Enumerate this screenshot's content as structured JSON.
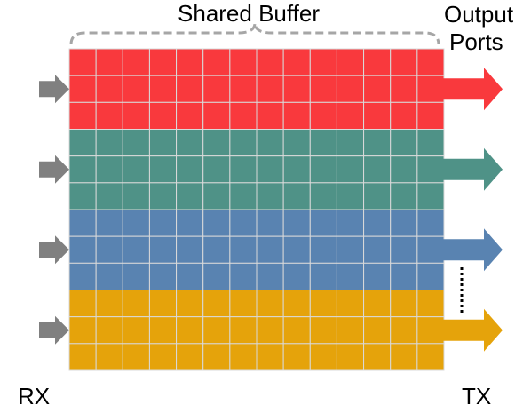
{
  "diagram": {
    "title": "Shared Buffer",
    "output_ports_line1": "Output",
    "output_ports_line2": "Ports",
    "rx_label": "RX",
    "tx_label": "TX",
    "queues": [
      {
        "color": "#f9393d",
        "arrow_color": "#f9393d"
      },
      {
        "color": "#4f9287",
        "arrow_color": "#4f9287"
      },
      {
        "color": "#5983b1",
        "arrow_color": "#5983b1"
      },
      {
        "color": "#e5a30b",
        "arrow_color": "#e5a30b"
      }
    ],
    "input_arrow_color": "#808080",
    "grid_line_color": "#d9d9d9",
    "brace_color": "#a6a6a6",
    "columns": 14,
    "rows_per_queue": 3,
    "ellipsis_icon": "vertical-dots-icon"
  }
}
